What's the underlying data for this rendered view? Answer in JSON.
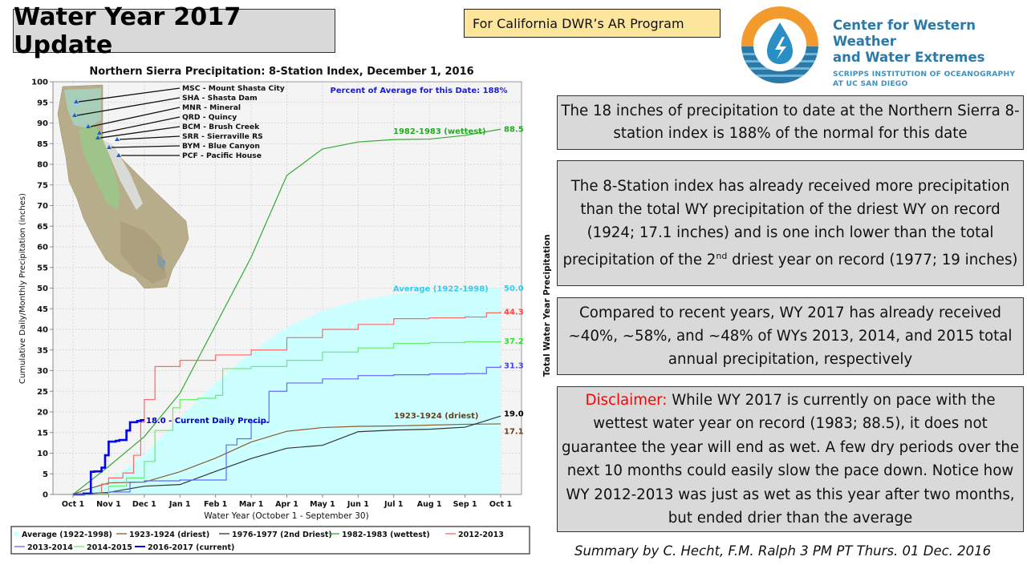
{
  "header": {
    "title": "Water Year 2017 Update",
    "program_label": "For California DWR’s AR Program"
  },
  "logo": {
    "line1": "Center for Western Weather",
    "line2": "and Water Extremes",
    "line3": "SCRIPPS INSTITUTION OF OCEANOGRAPHY",
    "line4": "AT UC SAN DIEGO",
    "colors": {
      "orange": "#f29a2e",
      "blue": "#2a79a8"
    }
  },
  "info_boxes": {
    "box1": "The 18 inches of precipitation to date at the Northern Sierra 8-station index is 188% of the normal for this date",
    "box2_part1": "The 8-Station index has already received more precipitation than the total WY precipitation of the driest WY on record (1924; 17.1 inches) and is one inch lower than the total precipitation of the 2",
    "box2_sup": "nd",
    "box2_part2": " driest year on record (1977; 19 inches)",
    "box3": "Compared to recent years, WY 2017 has already received ~40%, ~58%, and ~48% of WYs 2013, 2014, and 2015 total annual precipitation, respectively",
    "box4_label": "Disclaimer:",
    "box4_text": " While WY 2017 is currently on pace with the wettest water year on record (1983; 88.5), it does not guarantee the year will end as wet. A few dry periods over the next 10 months could easily slow the pace down. Notice how WY 2012-2013 was just as wet as this year after two months, but ended drier than the average"
  },
  "summary": "Summary by C. Hecht, F.M. Ralph 3 PM PT Thurs. 01 Dec. 2016",
  "chart_data": {
    "type": "line",
    "title": "Northern Sierra Precipitation: 8-Station Index, December 1, 2016",
    "xlabel": "Water Year (October 1 - September 30)",
    "ylabel": "Cumulative Daily/Monthly Precipitation (inches)",
    "right_label": "Total Water Year Precipitation",
    "annotation_percent": "Percent of Average for this Date: 188%",
    "current_annotation": "18.0 -  Current Daily Precip.",
    "ylim": [
      0,
      100
    ],
    "yticks": [
      0,
      5,
      10,
      15,
      20,
      25,
      30,
      35,
      40,
      45,
      50,
      55,
      60,
      65,
      70,
      75,
      80,
      85,
      90,
      95,
      100
    ],
    "x_unit": "months since Oct 1",
    "xlim": [
      0,
      12
    ],
    "xtick_labels": [
      "Oct 1",
      "Nov 1",
      "Dec 1",
      "Jan 1",
      "Feb 1",
      "Mar 1",
      "Apr 1",
      "May 1",
      "Jun 1",
      "Jul 1",
      "Aug 1",
      "Sep 1",
      "Oct 1"
    ],
    "grid": true,
    "legend_position": "bottom",
    "map_stations": [
      "MSC - Mount Shasta City",
      "SHA - Shasta Dam",
      "MNR - Mineral",
      "QRD - Quincy",
      "BCM - Brush Creek",
      "SRR - Sierraville RS",
      "BYM - Blue Canyon",
      "PCF - Pacific House"
    ],
    "series": [
      {
        "name": "Average (1922-1998)",
        "color": "#ccffff",
        "label_color": "#33ccee",
        "style": "area",
        "end_label": "50.0",
        "inline_label": "Average (1922-1998)",
        "x": [
          0,
          1,
          2,
          3,
          4,
          5,
          6,
          7,
          8,
          9,
          10,
          11,
          12
        ],
        "y": [
          0,
          3.3,
          9.6,
          18.5,
          27.0,
          34.5,
          40.5,
          44.5,
          47.0,
          48.5,
          49.2,
          49.6,
          50.0
        ]
      },
      {
        "name": "1923-1924 (driest)",
        "color": "#8b5a2b",
        "label_color": "#6b3f1a",
        "style": "line",
        "end_label": "17.1",
        "inline_label": "1923-1924 (driest)",
        "x": [
          0,
          0.3,
          1,
          2,
          3,
          4,
          5,
          6,
          7,
          8,
          9,
          10,
          11,
          12
        ],
        "y": [
          0,
          1.0,
          2.8,
          3.0,
          5.5,
          8.8,
          12.7,
          15.3,
          16.2,
          16.5,
          16.6,
          16.8,
          17.0,
          17.1
        ]
      },
      {
        "name": "1976-1977 (2nd Driest)",
        "color": "#333333",
        "label_color": "#000000",
        "style": "line",
        "end_label": "19.0",
        "x": [
          0,
          1,
          2,
          3,
          4,
          5,
          6,
          7,
          8,
          9,
          10,
          11,
          12
        ],
        "y": [
          0,
          0.5,
          2.0,
          2.4,
          5.6,
          8.7,
          11.2,
          11.9,
          15.2,
          15.6,
          15.8,
          16.3,
          19.0
        ]
      },
      {
        "name": "1982-1983 (wettest)",
        "color": "#33aa33",
        "label_color": "#22aa22",
        "style": "line",
        "end_label": "88.5",
        "inline_label": "1982-1983 (wettest)",
        "x": [
          0,
          1,
          2,
          3,
          4,
          5,
          6,
          7,
          8,
          9,
          10,
          11,
          12
        ],
        "y": [
          0,
          6.8,
          14.0,
          24.5,
          41.0,
          57.5,
          77.3,
          83.7,
          85.4,
          86.0,
          86.1,
          87.0,
          88.5
        ]
      },
      {
        "name": "2012-2013",
        "color": "#ff6666",
        "label_color": "#ff4444",
        "style": "step",
        "end_label": "44.3",
        "x": [
          0,
          0.6,
          0.8,
          1.0,
          1.4,
          1.7,
          1.9,
          2.0,
          2.3,
          3.0,
          4.0,
          5.0,
          6.0,
          7.0,
          8.0,
          9.0,
          10.0,
          11.0,
          11.6,
          12.0
        ],
        "y": [
          0,
          0.2,
          2.5,
          4.0,
          5.2,
          9.5,
          17.5,
          23.0,
          31.0,
          32.5,
          33.8,
          35.0,
          38.0,
          40.0,
          41.2,
          42.6,
          42.8,
          43.0,
          44.0,
          44.3
        ]
      },
      {
        "name": "2013-2014",
        "color": "#6666ff",
        "label_color": "#4444ee",
        "style": "step",
        "end_label": "31.3",
        "x": [
          0,
          0.6,
          1.0,
          1.6,
          2.0,
          3.0,
          4.0,
          4.3,
          4.6,
          5.0,
          5.5,
          6.0,
          7.0,
          8.0,
          9.0,
          10.0,
          11.0,
          11.6,
          12.0
        ],
        "y": [
          0,
          0.3,
          0.6,
          3.0,
          3.3,
          3.5,
          3.5,
          12.0,
          13.5,
          17.5,
          25.0,
          27.0,
          28.0,
          28.8,
          29.0,
          29.2,
          29.3,
          30.8,
          31.3
        ]
      },
      {
        "name": "2014-2015",
        "color": "#66ee66",
        "label_color": "#33dd33",
        "style": "step",
        "end_label": "37.2",
        "x": [
          0,
          0.7,
          1.0,
          1.5,
          2.0,
          2.3,
          2.8,
          3.0,
          3.5,
          4.0,
          4.2,
          5.0,
          6.0,
          7.0,
          8.0,
          9.0,
          10.0,
          11.0,
          12.0
        ],
        "y": [
          0,
          0.2,
          2.0,
          4.0,
          8.0,
          15.5,
          21.0,
          23.0,
          23.3,
          24.0,
          30.5,
          31.0,
          32.5,
          34.5,
          35.5,
          36.6,
          36.8,
          37.0,
          37.2
        ]
      },
      {
        "name": "2016-2017 (current)",
        "color": "#0000ee",
        "label_color": "#0000cc",
        "style": "step-thick",
        "end_label": "18.0",
        "x": [
          0,
          0.3,
          0.5,
          0.6,
          0.8,
          0.9,
          1.0,
          1.2,
          1.3,
          1.5,
          1.6,
          1.8,
          1.9,
          2.0
        ],
        "y": [
          0,
          0.2,
          5.5,
          5.6,
          6.5,
          9.5,
          12.8,
          13.0,
          13.2,
          15.5,
          17.5,
          17.8,
          18.0,
          18.0
        ]
      }
    ]
  }
}
